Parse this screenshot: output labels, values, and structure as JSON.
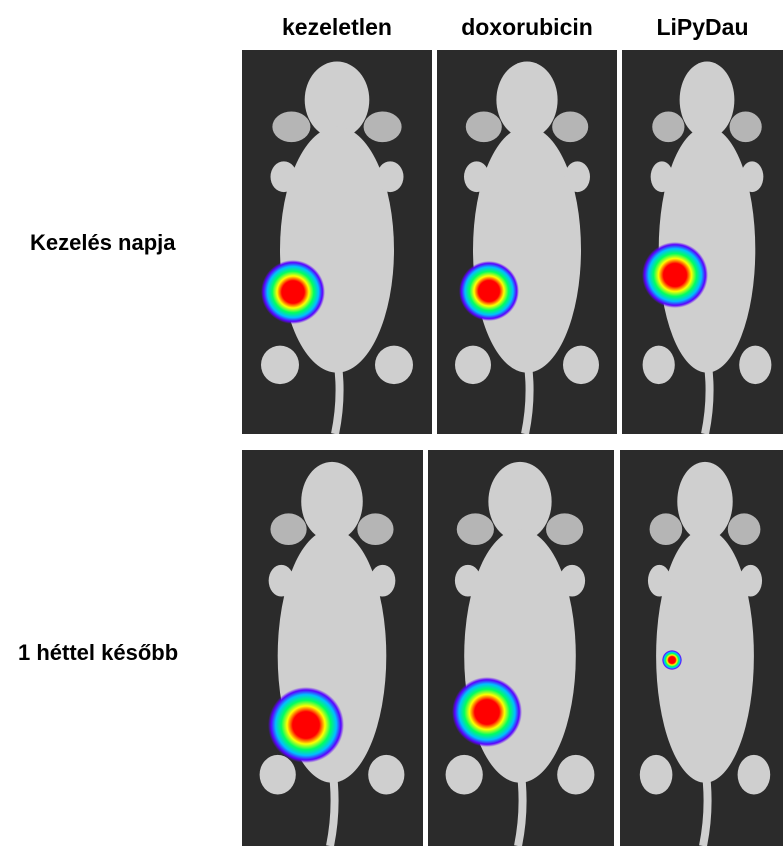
{
  "columns": [
    "kezeletlen",
    "doxorubicin",
    "LiPyDau"
  ],
  "rows": [
    "Kezelés napja",
    "1 héttel később"
  ],
  "colors": {
    "background": "#2b2b2b",
    "mouse": "#cfcfcf",
    "signal_high": "#ff0000",
    "signal_mid": "#ffff00",
    "signal_low": "#00c0ff",
    "signal_edge": "#5a00ff"
  }
}
